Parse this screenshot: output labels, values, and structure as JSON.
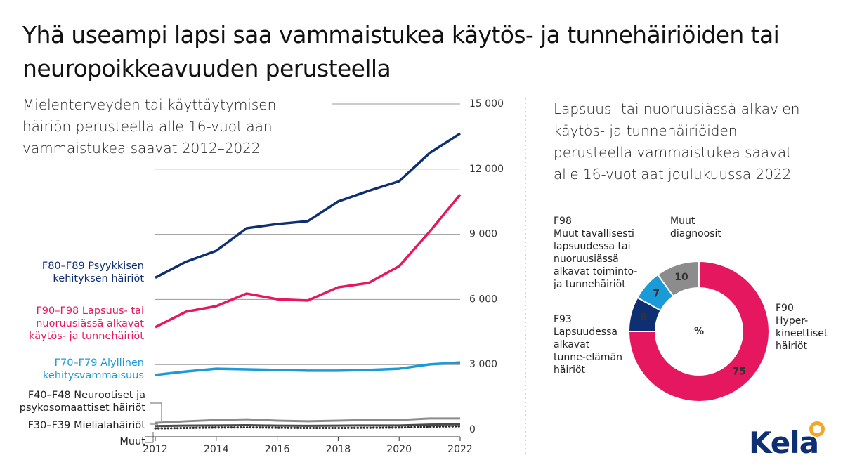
{
  "title": "Yhä useampi lapsi saa vammaistukea käytös- ja tunnehäiriöiden tai neuropoikkeavuuden perusteella",
  "logo": "Kela",
  "chart_data": [
    {
      "type": "line",
      "title": "Mielenterveyden tai käyttäytymisen häiriön perusteella alle 16-vuotiaan vammaistukea saavat 2012–2022",
      "x": [
        2012,
        2013,
        2014,
        2015,
        2016,
        2017,
        2018,
        2019,
        2020,
        2021,
        2022
      ],
      "xlim": [
        2012,
        2022
      ],
      "xticks": [
        2012,
        2014,
        2016,
        2018,
        2020,
        2022
      ],
      "ylim": [
        0,
        15000
      ],
      "yticks": [
        0,
        {
          "value": 3000,
          "label": "3 000"
        },
        {
          "value": 6000,
          "label": "6 000"
        },
        {
          "value": 9000,
          "label": "9 000"
        },
        {
          "value": 12000,
          "label": "12 000"
        },
        {
          "value": 15000,
          "label": "15 000"
        }
      ],
      "grid": true,
      "series": [
        {
          "name": "F80–F89 Psyykkisen\nkehityksen häiriöt",
          "color": "#0f2f73",
          "values": [
            7000,
            7730,
            8240,
            9280,
            9470,
            9600,
            10510,
            11000,
            11440,
            12740,
            13640
          ]
        },
        {
          "name": "F90–F98 Lapsuus- tai\nnuoruusiässä alkavat\nkäytös- ja tunnehäiriöt",
          "color": "#e5175f",
          "values": [
            4720,
            5430,
            5690,
            6270,
            6010,
            5950,
            6560,
            6760,
            7530,
            9120,
            10830
          ]
        },
        {
          "name": "F70–F79 Älyllinen\nkehitysvammaisuus",
          "color": "#1a9bd7",
          "values": [
            2520,
            2680,
            2810,
            2780,
            2750,
            2720,
            2720,
            2750,
            2810,
            3010,
            3100
          ]
        },
        {
          "name": "F40–F48 Neurootiset ja\npsykosomaattiset häiriöt",
          "color": "#8c8c8c",
          "values": [
            320,
            390,
            450,
            480,
            420,
            390,
            420,
            450,
            450,
            520,
            520
          ]
        },
        {
          "name": "F30–F39 Mielialahäiriöt",
          "color": "#4a4a4a",
          "values": [
            170,
            190,
            200,
            210,
            190,
            180,
            190,
            200,
            200,
            240,
            250
          ]
        },
        {
          "name": "Muut",
          "color": "#2a2a2a",
          "values": [
            60,
            80,
            100,
            110,
            90,
            80,
            80,
            90,
            100,
            140,
            160
          ]
        }
      ]
    },
    {
      "type": "pie",
      "title": "Lapsuus- tai nuoruusiässä alkavien käytös- ja tunnehäiriöiden perusteella vammaistukea saavat alle 16-vuotiaat joulukuussa 2022",
      "center_label": "%",
      "categories": [
        "F90\nHyper-\nkineettiset\nhäiriöt",
        "F93\nLapsuudessa\nalkavat\ntunne-elämän\nhäiriöt",
        "F98\nMuut tavallisesti\nlapsuudessa tai\nnuoruusiässä\nalkavat toiminto-\nja tunnehäiriöt",
        "Muut\ndiagnoosit"
      ],
      "values": [
        75,
        8,
        7,
        10
      ],
      "colors": [
        "#e5175f",
        "#0f2f73",
        "#1a9bd7",
        "#8c8c8c"
      ]
    }
  ]
}
